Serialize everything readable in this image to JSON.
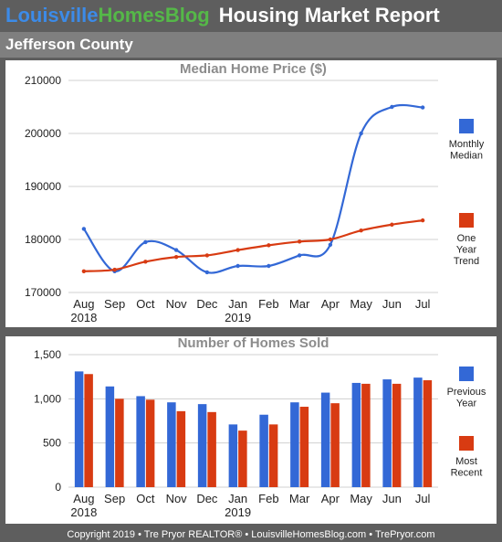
{
  "header": {
    "brand_part1": "Louisville",
    "brand_part2": "HomesBlog",
    "title": "Housing Market Report"
  },
  "region": "Jefferson County",
  "footer": "Copyright 2019 • Tre Pryor REALTOR® • LouisvilleHomesBlog.com • TrePryor.com",
  "colors": {
    "blue": "#3368d6",
    "red": "#d83b12",
    "background": "#5e5e5e",
    "subheader": "#7f7f7f"
  },
  "chart_data": [
    {
      "type": "line",
      "title": "Median Home Price ($)",
      "categories": [
        "Aug",
        "Sep",
        "Oct",
        "Nov",
        "Dec",
        "Jan",
        "Feb",
        "Mar",
        "Apr",
        "May",
        "Jun",
        "Jul"
      ],
      "year_labels": [
        {
          "index": 0,
          "label": "2018"
        },
        {
          "index": 5,
          "label": "2019"
        }
      ],
      "ylim": [
        170000,
        210000
      ],
      "yticks": [
        170000,
        180000,
        190000,
        200000,
        210000
      ],
      "ytick_labels": [
        "170000",
        "180000",
        "190000",
        "200000",
        "210000"
      ],
      "grid": true,
      "legend_position": "right",
      "series": [
        {
          "legend": [
            "Monthly",
            "Median"
          ],
          "color": "#3368d6",
          "smooth": true,
          "values": [
            182000,
            174000,
            179500,
            178000,
            173800,
            175000,
            175000,
            177000,
            179000,
            200000,
            205000,
            204900
          ]
        },
        {
          "legend": [
            "One",
            "Year",
            "Trend"
          ],
          "color": "#d83b12",
          "smooth": true,
          "values": [
            174000,
            174300,
            175800,
            176700,
            177000,
            178000,
            178900,
            179600,
            180000,
            181700,
            182800,
            183600
          ]
        }
      ]
    },
    {
      "type": "bar",
      "title": "Number of Homes Sold",
      "categories": [
        "Aug",
        "Sep",
        "Oct",
        "Nov",
        "Dec",
        "Jan",
        "Feb",
        "Mar",
        "Apr",
        "May",
        "Jun",
        "Jul"
      ],
      "year_labels": [
        {
          "index": 0,
          "label": "2018"
        },
        {
          "index": 5,
          "label": "2019"
        }
      ],
      "ylim": [
        0,
        1500
      ],
      "yticks": [
        0,
        500,
        1000,
        1500
      ],
      "ytick_labels": [
        "0",
        "500",
        "1,000",
        "1,500"
      ],
      "grid": true,
      "legend_position": "right",
      "series": [
        {
          "legend": [
            "Previous",
            "Year"
          ],
          "color": "#3368d6",
          "values": [
            1310,
            1140,
            1030,
            960,
            940,
            710,
            820,
            960,
            1070,
            1180,
            1220,
            1240
          ]
        },
        {
          "legend": [
            "Most",
            "Recent"
          ],
          "color": "#d83b12",
          "values": [
            1280,
            1000,
            990,
            860,
            850,
            640,
            710,
            910,
            950,
            1170,
            1170,
            1210
          ]
        }
      ]
    }
  ]
}
